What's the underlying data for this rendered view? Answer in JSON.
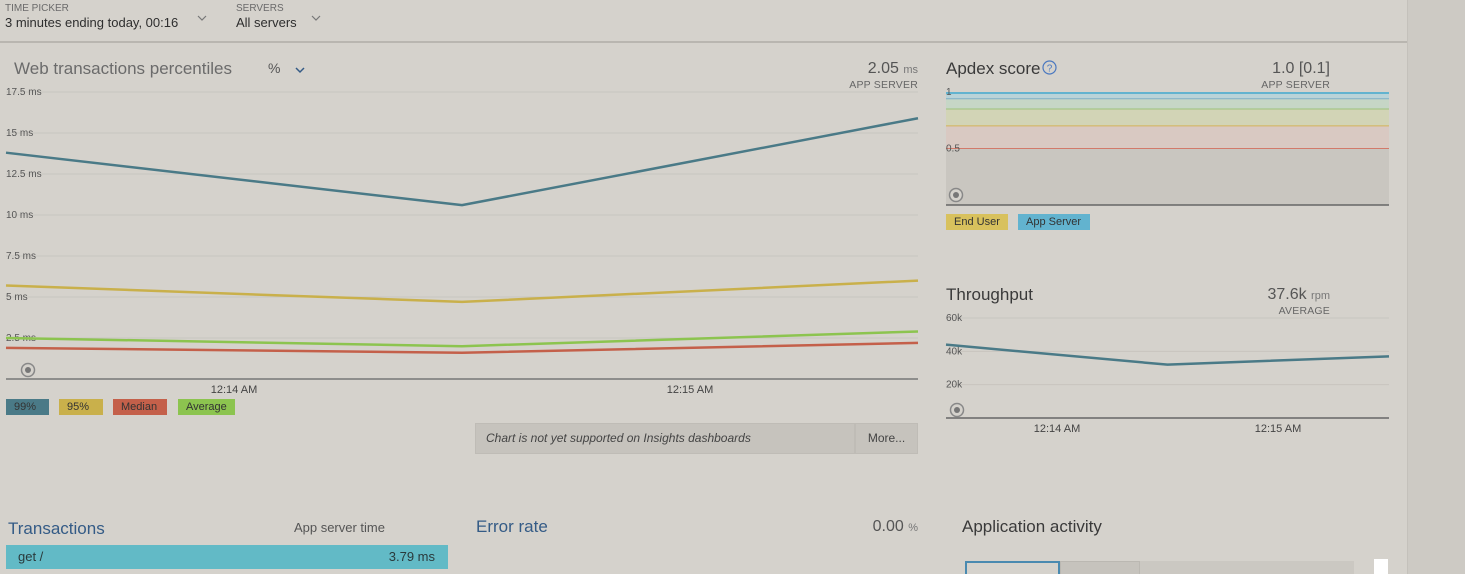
{
  "top_bar": {
    "time_picker": {
      "label": "TIME PICKER",
      "value": "3 minutes ending today, 00:16"
    },
    "servers": {
      "label": "SERVERS",
      "value": "All servers"
    }
  },
  "web_transactions": {
    "title": "Web transactions percentiles",
    "unit_selector": "%",
    "value": "2.05",
    "unit": "ms",
    "sublabel": "APP SERVER",
    "notice": "Chart is not yet supported on Insights dashboards",
    "more_button": "More...",
    "legend": [
      {
        "label": "99%",
        "color": "#4a7a87"
      },
      {
        "label": "95%",
        "color": "#c9b04b"
      },
      {
        "label": "Median",
        "color": "#c4604a"
      },
      {
        "label": "Average",
        "color": "#8cc44f"
      }
    ],
    "chart_data": {
      "type": "line",
      "y_ticks": [
        "17.5 ms",
        "15 ms",
        "12.5 ms",
        "10 ms",
        "7.5 ms",
        "5 ms",
        "2.5 ms"
      ],
      "y_tick_values": [
        17.5,
        15,
        12.5,
        10,
        7.5,
        5,
        2.5
      ],
      "x_ticks": [
        "12:14 AM",
        "12:15 AM"
      ],
      "x": [
        0,
        1,
        2
      ],
      "ylim": [
        0,
        17.5
      ],
      "series": [
        {
          "name": "99%",
          "color": "#4a7a87",
          "values": [
            13.8,
            10.6,
            15.9
          ]
        },
        {
          "name": "95%",
          "color": "#c9b04b",
          "values": [
            5.7,
            4.7,
            6.0
          ]
        },
        {
          "name": "Average",
          "color": "#8cc44f",
          "values": [
            2.5,
            2.0,
            2.9
          ]
        },
        {
          "name": "Median",
          "color": "#c4604a",
          "values": [
            1.9,
            1.6,
            2.2
          ]
        }
      ]
    }
  },
  "apdex": {
    "title": "Apdex score",
    "help_icon": "question-circle-icon",
    "value": "1.0 [0.1]",
    "sublabel": "APP SERVER",
    "y_ticks": [
      "1",
      "0.5"
    ],
    "legend": [
      {
        "label": "End User",
        "color": "#d8c15d"
      },
      {
        "label": "App Server",
        "color": "#62b3cf"
      }
    ],
    "chart_data": {
      "type": "line",
      "ylim": [
        0,
        1
      ],
      "series": [
        {
          "name": "App Server",
          "color": "#62b3cf",
          "values": [
            1.0,
            1.0
          ]
        }
      ]
    }
  },
  "throughput": {
    "title": "Throughput",
    "value": "37.6k",
    "unit": "rpm",
    "sublabel": "AVERAGE",
    "chart_data": {
      "type": "line",
      "y_ticks": [
        "60k",
        "40k",
        "20k"
      ],
      "y_tick_values": [
        60000,
        40000,
        20000
      ],
      "x_ticks": [
        "12:14 AM",
        "12:15 AM"
      ],
      "x": [
        0,
        1,
        2
      ],
      "ylim": [
        0,
        60000
      ],
      "series": [
        {
          "name": "Throughput",
          "color": "#4a7a87",
          "values": [
            44000,
            32000,
            37000
          ]
        }
      ]
    }
  },
  "transactions": {
    "title": "Transactions",
    "column_label": "App server time",
    "rows": [
      {
        "name": "get /",
        "time": "3.79 ms"
      }
    ]
  },
  "error_rate": {
    "title": "Error rate",
    "value": "0.00",
    "unit": "%"
  },
  "application_activity": {
    "title": "Application activity"
  },
  "colors": {
    "background": "#d5d2cc",
    "accent_blue": "#345b86"
  }
}
